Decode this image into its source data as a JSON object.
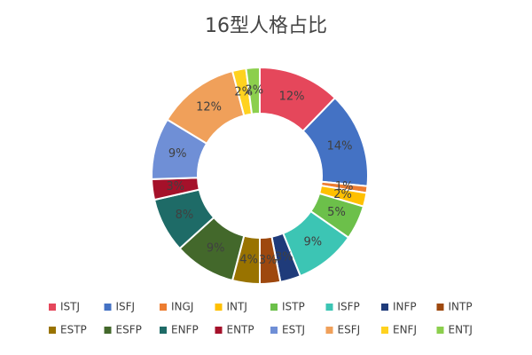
{
  "chart_data": {
    "type": "donut",
    "title": "16型人格占比",
    "categories": [
      "ISTJ",
      "ISFJ",
      "INGJ",
      "INTJ",
      "ISTP",
      "ISFP",
      "INFP",
      "INTP",
      "ESTP",
      "ESFP",
      "ENFP",
      "ENTP",
      "ESTJ",
      "ESFJ",
      "ENFJ",
      "ENTJ"
    ],
    "values": [
      12,
      14,
      1,
      2,
      5,
      9,
      3,
      3,
      4,
      9,
      8,
      3,
      9,
      12,
      2,
      2
    ],
    "value_labels": [
      "12%",
      "14%",
      "1%",
      "2%",
      "5%",
      "9%",
      "3%",
      "3%",
      "4%",
      "9%",
      "8%",
      "3%",
      "9%",
      "12%",
      "2%",
      "2%"
    ],
    "colors": [
      "#e5475b",
      "#4472c4",
      "#ed7d31",
      "#ffc000",
      "#6cc04a",
      "#3cc5b4",
      "#1f3b7a",
      "#9e480e",
      "#997300",
      "#43682b",
      "#1e6b67",
      "#a5112a",
      "#6f8fd6",
      "#f0a05a",
      "#ffd21f",
      "#8ccf4d"
    ],
    "legend": "bottom"
  }
}
